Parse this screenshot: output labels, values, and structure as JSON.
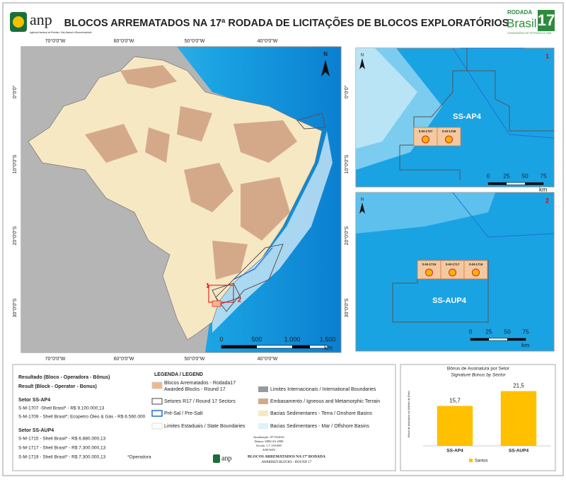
{
  "header": {
    "title": "BLOCOS ARREMATADOS NA 17ª RODADA DE LICITAÇÕES DE BLOCOS EXPLORATÓRIOS",
    "agency_logo": "anp",
    "agency_name": "Agência Nacional do Petróleo, Gás Natural e Biocombustíveis",
    "round_logo": {
      "top": "RODADA",
      "word": "Brasil",
      "number": "17",
      "caption": "CONCESSÕES DE PETRÓLEO E GÁS"
    }
  },
  "map": {
    "lon_labels": [
      "70°0'0\"W",
      "60°0'0\"W",
      "50°0'0\"W",
      "40°0'0\"W"
    ],
    "lat_labels": [
      "0°0'0\"",
      "10°0'0\"S",
      "20°0'0\"S",
      "30°0'0\"S"
    ],
    "north": "N",
    "scale_labels": [
      "0",
      "500",
      "1.000",
      "1.500"
    ],
    "scale_unit": "km",
    "inset_markers": [
      "1",
      "2"
    ]
  },
  "insets": [
    {
      "number": "1",
      "sector": "SS-AP4",
      "blocks": [
        "S-M-1707",
        "S-M-1709"
      ],
      "north": "N",
      "scale_labels": [
        "0",
        "25",
        "50",
        "75"
      ],
      "scale_unit": "km"
    },
    {
      "number": "2",
      "sector": "SS-AUP4",
      "blocks": [
        "S-M-1715",
        "S-M-1717",
        "S-M-1719"
      ],
      "north": "N",
      "scale_labels": [
        "0",
        "25",
        "50",
        "75"
      ],
      "scale_unit": "km"
    }
  ],
  "results": {
    "heading_pt": "Resultado (Bloco - Operadora - Bônus)",
    "heading_en": "Result (Block - Operator - Bonus)",
    "sectors": [
      {
        "name": "Setor SS-AP4",
        "lines": [
          "S-M-1707 -Shell Brasil* - R$ 9.100.000,13",
          "S-M-1709 - Shell Brasil*; Ecopetro Óleo & Gás  - R$ 6.560.000"
        ]
      },
      {
        "name": "Setor SS-AUP4",
        "lines": [
          "S-M-1715 - Shell Brasil* - R$ 6.880.000,13",
          "S-M-1717 - Shell Brasil* - R$ 7.300.000,13",
          "S-M-1719 - Shell Brasil* - R$ 7.300.000,13"
        ]
      }
    ],
    "footnote": "*Operadora"
  },
  "legend": {
    "title": "LEGENDA / LEGEND",
    "items": [
      {
        "lines": [
          "Blocos Arrematados - Rodada17",
          "Awarded Blocks - Round 17"
        ]
      },
      {
        "lines": [
          "Setores R17 / Round 17 Sectors"
        ]
      },
      {
        "lines": [
          "Pré-Sal / Pre-Salt"
        ]
      },
      {
        "lines": [
          "Limites Estaduais / State Boundaries"
        ]
      },
      {
        "lines": [
          "Limites Internacionais / International Boundaries"
        ]
      },
      {
        "lines": [
          "Embasamento / Igneous and Metamorphic Terrain"
        ]
      },
      {
        "lines": [
          "Bacias Sedimentares - Terra / Onshore Basins"
        ]
      },
      {
        "lines": [
          "Bacias Sedimentares - Mar / Offshore Basins"
        ]
      }
    ]
  },
  "credits": {
    "lines": [
      "Atualização: 07/10/2021",
      "Datum: SIRGAS 2000",
      "Escala: 1:7.150.000",
      "ANP/SDT"
    ],
    "logo": "anp",
    "title_pt": "BLOCOS ARREMATADOS NA 17ª RODADA",
    "title_en": "AWARDED BLOCKS - ROUND 17"
  },
  "chart_data": {
    "type": "bar",
    "title": "Bônus de Assinatura por Setor",
    "subtitle": "Signature Bonus by Sector",
    "y_label": "Bônus de Assinatura em Milhões de Reais",
    "categories": [
      "SS-AP4",
      "SS-AUP4"
    ],
    "series": [
      {
        "name": "Santos",
        "color": "#ffc000",
        "values": [
          15.7,
          21.5
        ],
        "value_labels": [
          "15,7",
          "21,5"
        ]
      }
    ],
    "ylim": [
      0,
      25
    ]
  }
}
